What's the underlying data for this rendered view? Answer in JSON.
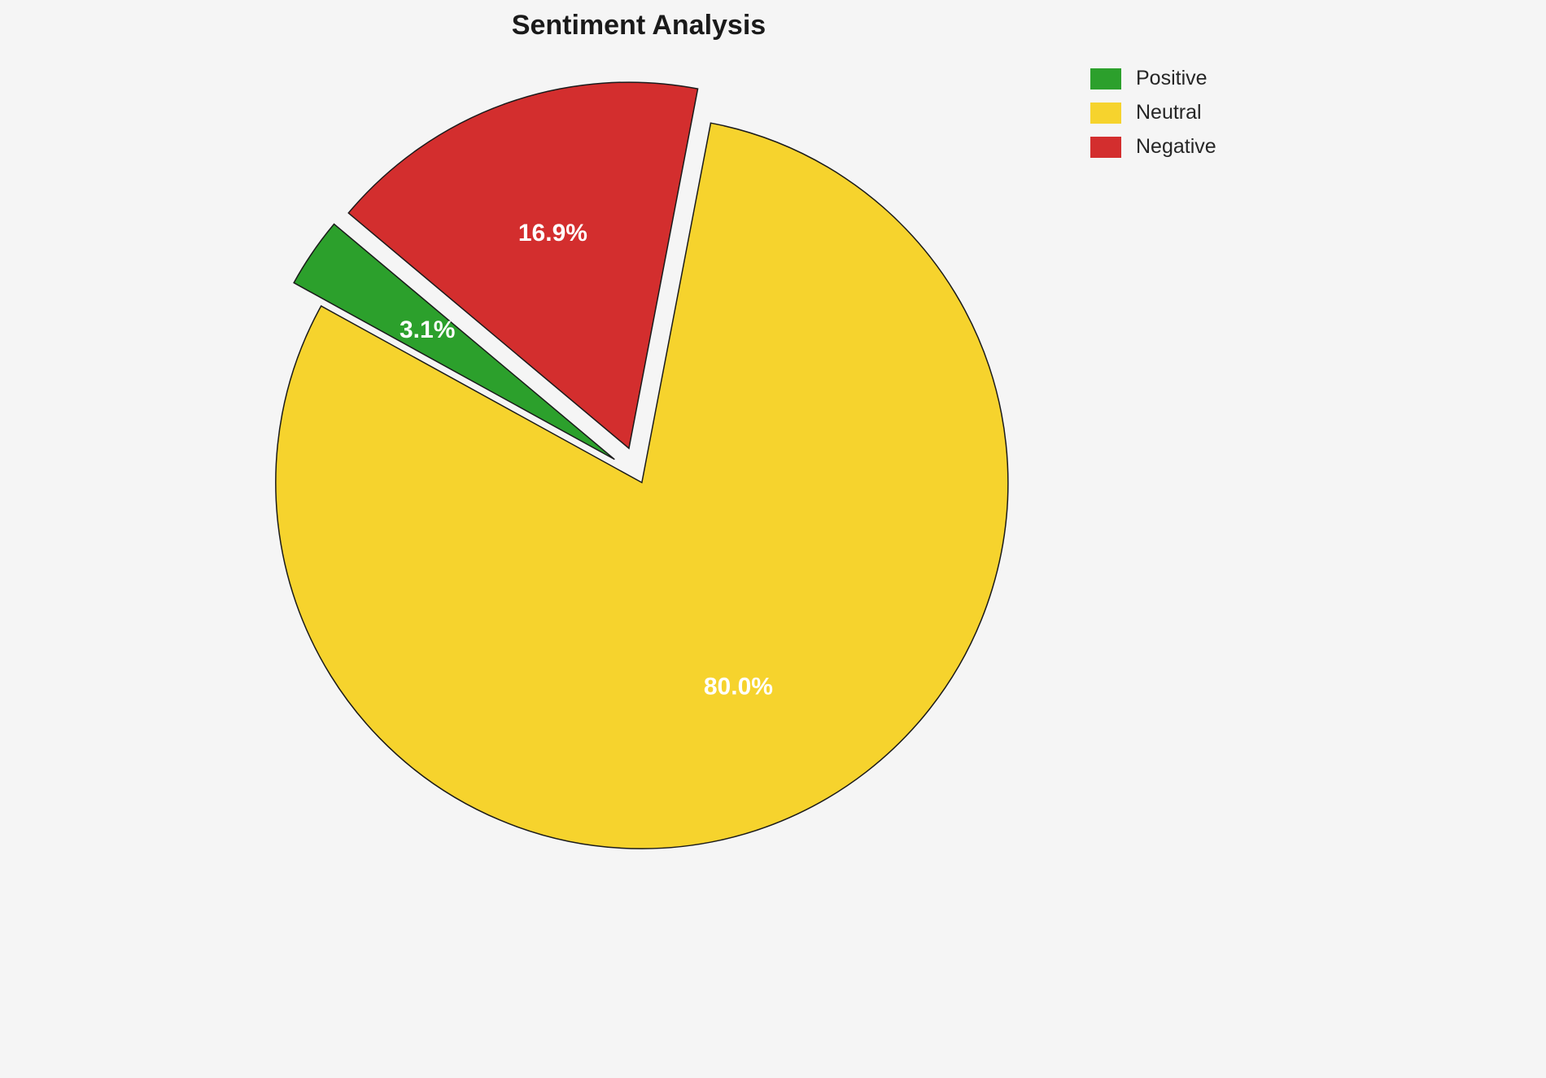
{
  "title": "Sentiment Analysis",
  "chart_data": {
    "type": "pie",
    "title": "Sentiment Analysis",
    "labels": [
      "Positive",
      "Neutral",
      "Negative"
    ],
    "values": [
      3.1,
      80.0,
      16.9
    ],
    "percent_labels": [
      "3.1%",
      "80.0%",
      "16.9%"
    ],
    "colors": [
      "#2ca02c",
      "#f6d32d",
      "#d32e2e"
    ],
    "explode": [
      0.08,
      0.02,
      0.08
    ],
    "start_angle": 140,
    "direction": "counterclockwise",
    "slice_outline_color": "#1a1a1a",
    "label_color": "#ffffff",
    "legend_position": "upper right",
    "background": "#f5f5f5"
  },
  "legend": {
    "items": [
      {
        "label": "Positive",
        "color": "#2ca02c"
      },
      {
        "label": "Neutral",
        "color": "#f6d32d"
      },
      {
        "label": "Negative",
        "color": "#d32e2e"
      }
    ]
  }
}
